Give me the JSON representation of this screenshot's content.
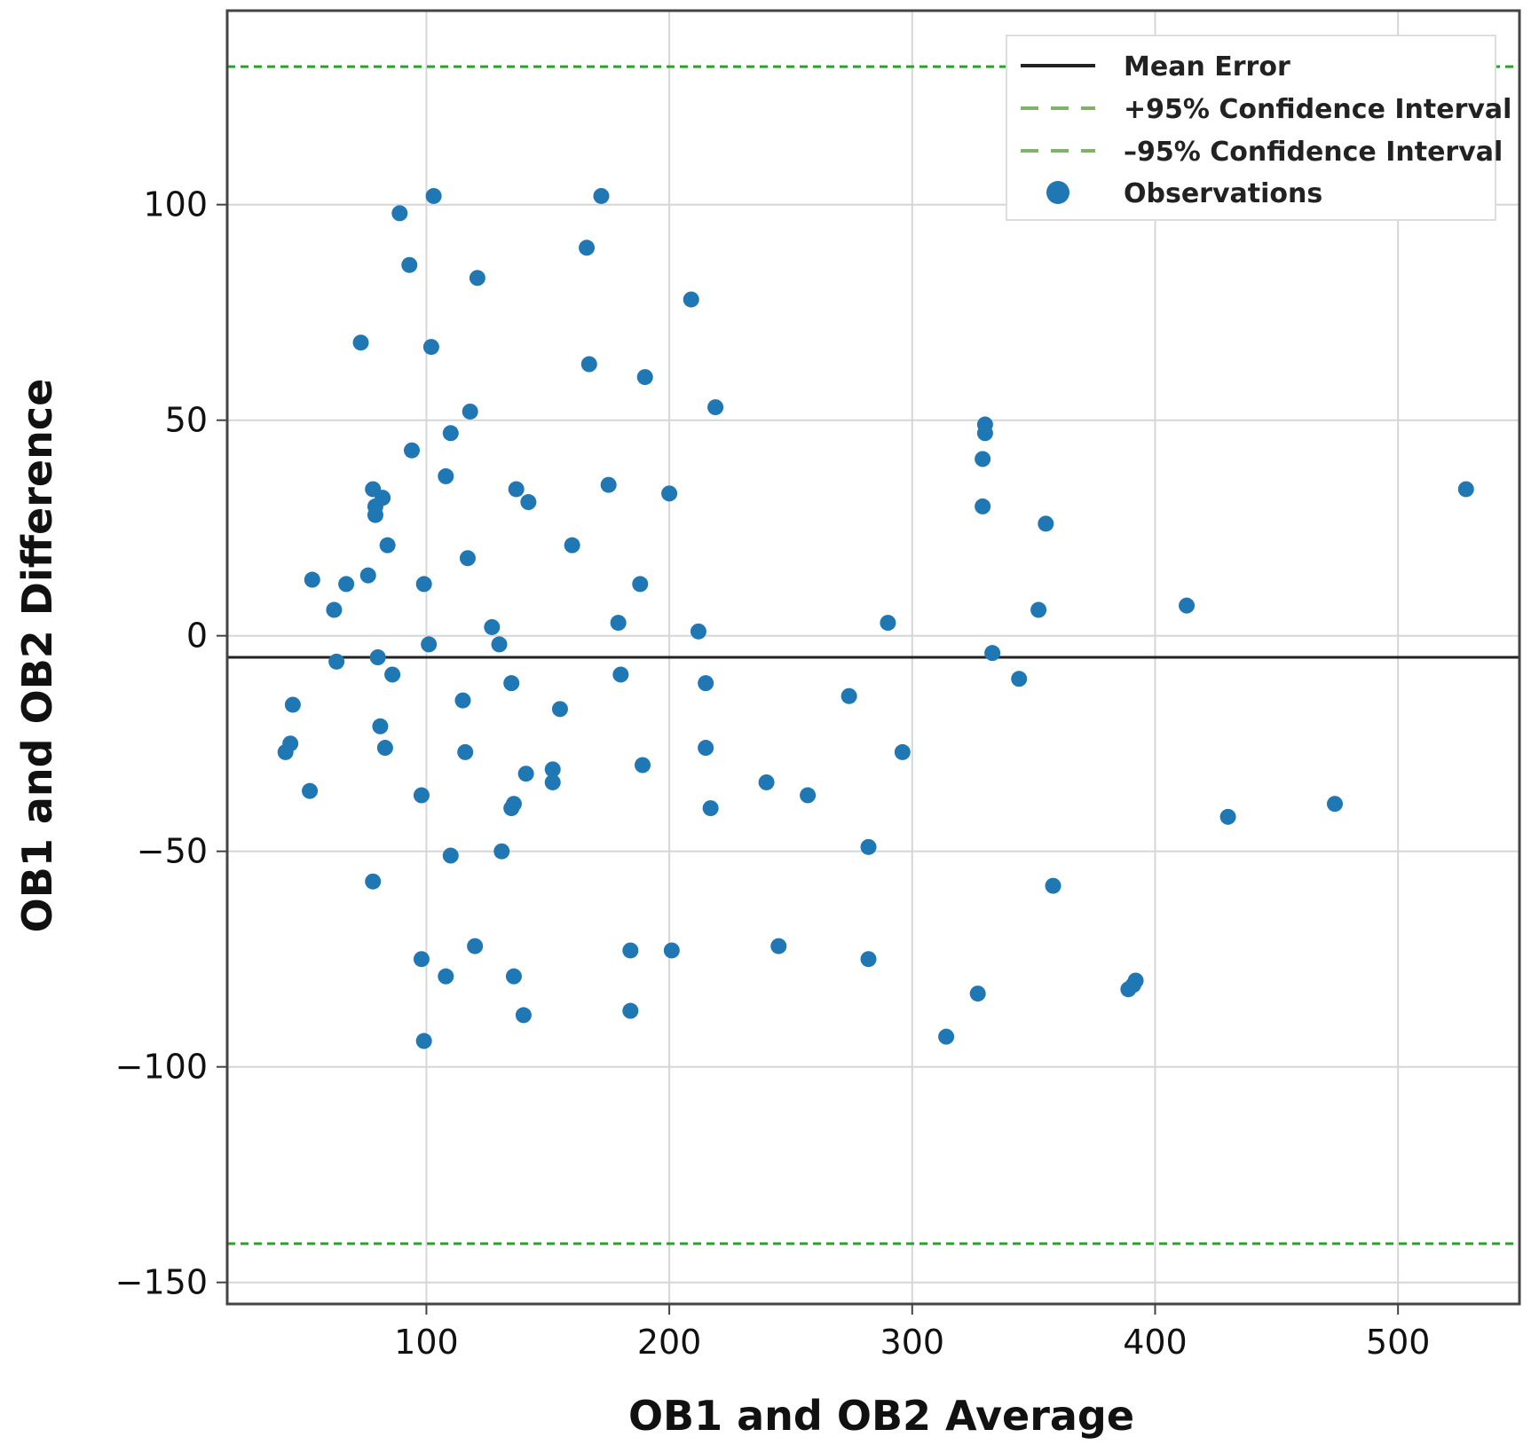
{
  "chart_data": {
    "type": "scatter",
    "title": "",
    "xlabel": "OB1 and OB2 Average",
    "ylabel": "OB1 and OB2 Difference",
    "xlim": [
      18,
      550
    ],
    "ylim": [
      -155,
      145
    ],
    "xticks": [
      100,
      200,
      300,
      400,
      500
    ],
    "yticks": [
      -150,
      -100,
      -50,
      0,
      50,
      100
    ],
    "xtick_labels": [
      "100",
      "200",
      "300",
      "400",
      "500"
    ],
    "ytick_labels": [
      "−150",
      "−100",
      "−50",
      "0",
      "50",
      "100"
    ],
    "grid": true,
    "colors": {
      "points": "#1f77b4",
      "mean": "#222222",
      "ci": "#2ca02c"
    },
    "mean_error": -5,
    "ci_upper": 132,
    "ci_lower": -141,
    "legend": {
      "position": "top-right",
      "entries": [
        {
          "label": "Mean Error",
          "style": "solid-line"
        },
        {
          "label": "+95% Confidence Interval",
          "style": "dashed-line"
        },
        {
          "label": "–95% Confidence Interval",
          "style": "dashed-line"
        },
        {
          "label": "Observations",
          "style": "marker"
        }
      ]
    },
    "points": [
      [
        42,
        -27
      ],
      [
        44,
        -25
      ],
      [
        45,
        -16
      ],
      [
        52,
        -36
      ],
      [
        53,
        13
      ],
      [
        62,
        6
      ],
      [
        63,
        -6
      ],
      [
        67,
        12
      ],
      [
        73,
        68
      ],
      [
        76,
        14
      ],
      [
        78,
        -57
      ],
      [
        78,
        34
      ],
      [
        79,
        28
      ],
      [
        79,
        30
      ],
      [
        80,
        -5
      ],
      [
        81,
        -21
      ],
      [
        82,
        32
      ],
      [
        83,
        -26
      ],
      [
        84,
        21
      ],
      [
        86,
        -9
      ],
      [
        89,
        98
      ],
      [
        93,
        86
      ],
      [
        94,
        43
      ],
      [
        98,
        -37
      ],
      [
        98,
        -75
      ],
      [
        99,
        12
      ],
      [
        99,
        -94
      ],
      [
        101,
        -2
      ],
      [
        102,
        67
      ],
      [
        103,
        102
      ],
      [
        108,
        -79
      ],
      [
        108,
        37
      ],
      [
        110,
        47
      ],
      [
        110,
        -51
      ],
      [
        115,
        -15
      ],
      [
        116,
        -27
      ],
      [
        117,
        18
      ],
      [
        118,
        52
      ],
      [
        120,
        -72
      ],
      [
        121,
        83
      ],
      [
        127,
        2
      ],
      [
        130,
        -2
      ],
      [
        131,
        -50
      ],
      [
        135,
        -11
      ],
      [
        135,
        -40
      ],
      [
        136,
        -79
      ],
      [
        136,
        -39
      ],
      [
        137,
        34
      ],
      [
        140,
        -88
      ],
      [
        141,
        -32
      ],
      [
        142,
        31
      ],
      [
        152,
        -31
      ],
      [
        152,
        -34
      ],
      [
        155,
        -17
      ],
      [
        160,
        21
      ],
      [
        166,
        90
      ],
      [
        167,
        63
      ],
      [
        172,
        102
      ],
      [
        175,
        35
      ],
      [
        179,
        3
      ],
      [
        180,
        -9
      ],
      [
        184,
        -73
      ],
      [
        184,
        -87
      ],
      [
        188,
        12
      ],
      [
        189,
        -30
      ],
      [
        190,
        60
      ],
      [
        200,
        33
      ],
      [
        201,
        -73
      ],
      [
        209,
        78
      ],
      [
        212,
        1
      ],
      [
        215,
        -11
      ],
      [
        215,
        -26
      ],
      [
        217,
        -40
      ],
      [
        219,
        53
      ],
      [
        240,
        -34
      ],
      [
        245,
        -72
      ],
      [
        257,
        -37
      ],
      [
        274,
        -14
      ],
      [
        282,
        -49
      ],
      [
        282,
        -75
      ],
      [
        290,
        3
      ],
      [
        296,
        -27
      ],
      [
        314,
        -93
      ],
      [
        327,
        -83
      ],
      [
        329,
        30
      ],
      [
        329,
        41
      ],
      [
        330,
        47
      ],
      [
        330,
        49
      ],
      [
        333,
        -4
      ],
      [
        344,
        -10
      ],
      [
        352,
        6
      ],
      [
        355,
        26
      ],
      [
        358,
        -58
      ],
      [
        389,
        -82
      ],
      [
        391,
        -81
      ],
      [
        392,
        -80
      ],
      [
        413,
        7
      ],
      [
        430,
        -42
      ],
      [
        474,
        -39
      ],
      [
        528,
        34
      ]
    ]
  }
}
